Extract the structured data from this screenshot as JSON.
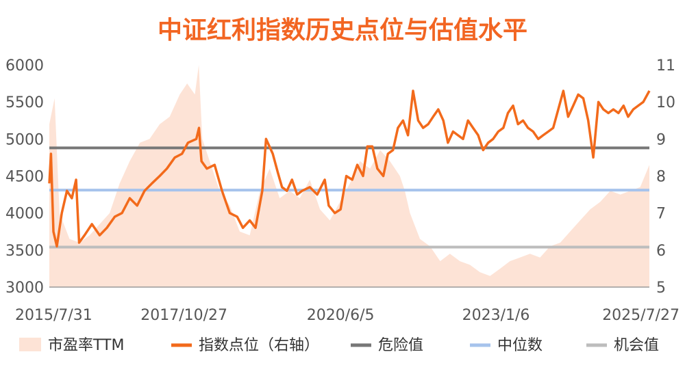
{
  "chart_data": {
    "type": "line",
    "title": "中证红利指数历史点位与估值水平",
    "x_range": [
      "2015/7/31",
      "2025/7/27"
    ],
    "x_ticks": [
      "2015/7/31",
      "2017/10/27",
      "2020/6/5",
      "2023/1/6",
      "2025/7/27"
    ],
    "y_left": {
      "range": [
        3000,
        6000
      ],
      "ticks": [
        "3000",
        "3500",
        "4000",
        "4500",
        "5000",
        "5500",
        "6000"
      ]
    },
    "y_right": {
      "range": [
        5,
        11
      ],
      "ticks": [
        "5",
        "6",
        "7",
        "8",
        "9",
        "10",
        "11"
      ]
    },
    "grid": false,
    "legend_position": "bottom",
    "legend": [
      "市盈率TTM",
      "指数点位（右轴）",
      "危险值",
      "中位数",
      "机会值"
    ],
    "colors": {
      "title": "#f26522",
      "pe_area": "#fde3d6",
      "index_line": "#f26a1b",
      "danger": "#777777",
      "median": "#a6c3ec",
      "opportunity": "#bdbdbd"
    },
    "reference_lines_left_axis": {
      "danger": 4880,
      "median": 4310,
      "opportunity": 3540
    },
    "series": [
      {
        "name": "市盈率TTM",
        "axis": "left",
        "style": "area",
        "x": [
          "2015/7/31",
          "2015/9/1",
          "2015/10/1",
          "2015/12/1",
          "2016/2/1",
          "2016/4/1",
          "2016/6/1",
          "2016/8/1",
          "2016/10/1",
          "2016/12/1",
          "2017/2/1",
          "2017/4/1",
          "2017/6/1",
          "2017/8/1",
          "2017/10/1",
          "2017/11/15",
          "2018/1/1",
          "2018/1/25",
          "2018/2/15",
          "2018/4/1",
          "2018/6/1",
          "2018/8/1",
          "2018/10/1",
          "2018/12/1",
          "2019/2/1",
          "2019/4/1",
          "2019/6/1",
          "2019/8/1",
          "2019/10/1",
          "2019/12/1",
          "2020/2/1",
          "2020/4/1",
          "2020/6/1",
          "2020/8/1",
          "2020/10/1",
          "2020/12/1",
          "2021/2/1",
          "2021/4/1",
          "2021/6/1",
          "2021/7/1",
          "2021/8/1",
          "2021/10/1",
          "2021/12/1",
          "2022/2/1",
          "2022/4/1",
          "2022/6/1",
          "2022/8/1",
          "2022/10/1",
          "2022/12/1",
          "2023/2/1",
          "2023/4/1",
          "2023/6/1",
          "2023/8/1",
          "2023/10/1",
          "2023/12/1",
          "2024/2/1",
          "2024/4/1",
          "2024/6/1",
          "2024/8/1",
          "2024/10/1",
          "2024/12/1",
          "2025/2/1",
          "2025/4/1",
          "2025/6/1",
          "2025/7/27"
        ],
        "values": [
          5200,
          5550,
          4000,
          3650,
          3600,
          3700,
          3850,
          4000,
          4400,
          4700,
          4950,
          5000,
          5200,
          5300,
          5600,
          5750,
          5600,
          6000,
          5000,
          4700,
          4300,
          4100,
          3750,
          3700,
          4300,
          4600,
          4200,
          4300,
          4200,
          4450,
          4050,
          3900,
          4150,
          4400,
          4700,
          4600,
          4850,
          4700,
          4500,
          4300,
          4000,
          3650,
          3550,
          3350,
          3450,
          3350,
          3300,
          3200,
          3150,
          3250,
          3350,
          3400,
          3450,
          3400,
          3550,
          3600,
          3750,
          3900,
          4050,
          4150,
          4300,
          4250,
          4300,
          4350,
          4650
        ]
      },
      {
        "name": "指数点位（右轴）",
        "axis": "right",
        "style": "line",
        "x": [
          "2015/7/31",
          "2015/8/10",
          "2015/8/25",
          "2015/9/15",
          "2015/10/15",
          "2015/11/15",
          "2015/12/15",
          "2016/1/10",
          "2016/1/28",
          "2016/3/1",
          "2016/4/15",
          "2016/6/1",
          "2016/7/15",
          "2016/9/1",
          "2016/10/15",
          "2016/12/1",
          "2017/1/15",
          "2017/3/1",
          "2017/4/15",
          "2017/6/1",
          "2017/7/15",
          "2017/9/1",
          "2017/10/15",
          "2017/11/20",
          "2018/1/10",
          "2018/1/26",
          "2018/2/10",
          "2018/3/15",
          "2018/5/1",
          "2018/6/15",
          "2018/8/1",
          "2018/9/15",
          "2018/10/20",
          "2018/12/1",
          "2019/1/5",
          "2019/2/15",
          "2019/3/10",
          "2019/4/20",
          "2019/5/20",
          "2019/6/15",
          "2019/7/15",
          "2019/8/15",
          "2019/9/15",
          "2019/10/15",
          "2019/12/1",
          "2020/1/15",
          "2020/3/1",
          "2020/3/25",
          "2020/5/1",
          "2020/6/5",
          "2020/7/10",
          "2020/8/15",
          "2020/9/15",
          "2020/10/20",
          "2020/11/15",
          "2020/12/15",
          "2021/1/15",
          "2021/2/20",
          "2021/3/20",
          "2021/4/20",
          "2021/5/20",
          "2021/6/20",
          "2021/7/20",
          "2021/8/20",
          "2021/9/20",
          "2021/10/20",
          "2021/11/20",
          "2021/12/20",
          "2022/1/20",
          "2022/2/20",
          "2022/3/20",
          "2022/4/20",
          "2022/5/20",
          "2022/6/20",
          "2022/7/20",
          "2022/8/20",
          "2022/9/20",
          "2022/10/20",
          "2022/11/20",
          "2022/12/20",
          "2023/1/20",
          "2023/2/20",
          "2023/3/20",
          "2023/4/20",
          "2023/5/20",
          "2023/6/20",
          "2023/7/20",
          "2023/8/20",
          "2023/9/20",
          "2023/10/20",
          "2023/11/20",
          "2023/12/20",
          "2024/1/20",
          "2024/2/20",
          "2024/3/20",
          "2024/4/20",
          "2024/5/20",
          "2024/6/20",
          "2024/7/20",
          "2024/8/20",
          "2024/9/20",
          "2024/10/20",
          "2024/11/20",
          "2024/12/20",
          "2025/1/20",
          "2025/2/20",
          "2025/3/20",
          "2025/4/20",
          "2025/5/20",
          "2025/6/20",
          "2025/7/27"
        ],
        "values": [
          7.8,
          8.6,
          6.5,
          6.1,
          7.0,
          7.6,
          7.4,
          7.9,
          6.2,
          6.4,
          6.7,
          6.4,
          6.6,
          6.9,
          7.0,
          7.4,
          7.2,
          7.6,
          7.8,
          8.0,
          8.2,
          8.5,
          8.6,
          8.9,
          9.0,
          9.3,
          8.4,
          8.2,
          8.3,
          7.6,
          7.0,
          6.9,
          6.6,
          6.8,
          6.6,
          7.6,
          9.0,
          8.6,
          8.1,
          7.7,
          7.6,
          7.9,
          7.5,
          7.6,
          7.7,
          7.5,
          7.9,
          7.2,
          7.0,
          7.1,
          8.0,
          7.9,
          8.3,
          8.0,
          8.8,
          8.8,
          8.2,
          8.0,
          8.6,
          8.7,
          9.3,
          9.5,
          9.1,
          10.3,
          9.5,
          9.3,
          9.4,
          9.6,
          9.8,
          9.5,
          8.9,
          9.2,
          9.1,
          9.0,
          9.5,
          9.3,
          9.1,
          8.7,
          8.9,
          9.0,
          9.2,
          9.3,
          9.7,
          9.9,
          9.4,
          9.5,
          9.3,
          9.2,
          9.0,
          9.1,
          9.2,
          9.3,
          9.8,
          10.3,
          9.6,
          9.9,
          10.2,
          10.1,
          9.5,
          8.5,
          10.0,
          9.8,
          9.7,
          9.8,
          9.7,
          9.9,
          9.6,
          9.8,
          9.9,
          10.0,
          10.3
        ]
      }
    ]
  },
  "texts": {
    "title": "中证红利指数历史点位与估值水平",
    "legend": {
      "pe": "市盈率TTM",
      "index": "指数点位（右轴）",
      "danger": "危险值",
      "median": "中位数",
      "opportunity": "机会值"
    }
  }
}
